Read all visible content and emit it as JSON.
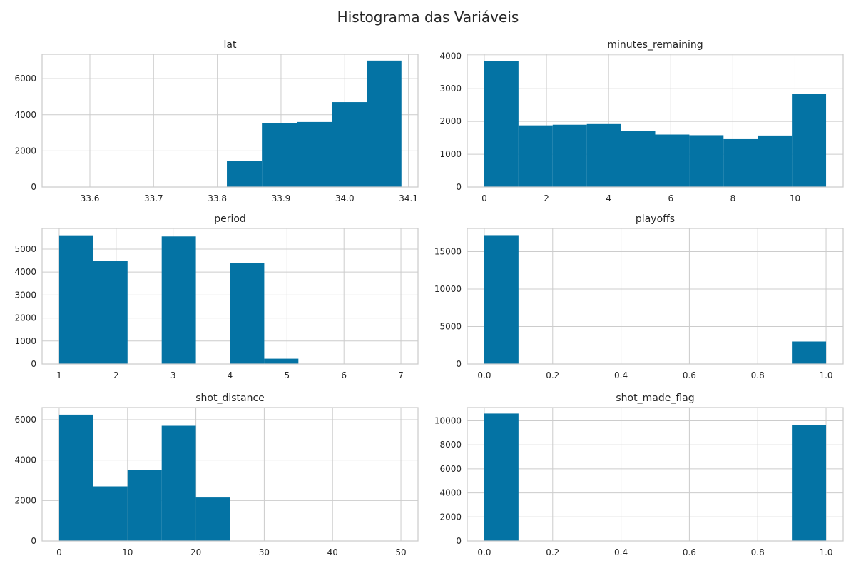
{
  "figure": {
    "title": "Histograma das Variáveis"
  },
  "colors": {
    "bar": "#0473a4",
    "grid": "#cccccc",
    "frame": "#cccccc",
    "text": "#262626"
  },
  "chart_data": [
    {
      "type": "bar",
      "title": "lat",
      "xlim": [
        33.525,
        34.115
      ],
      "ylim": [
        0,
        7350
      ],
      "xticks": [
        33.6,
        33.7,
        33.8,
        33.9,
        34.0,
        34.1
      ],
      "xtick_labels": [
        "33.6",
        "33.7",
        "33.8",
        "33.9",
        "34.0",
        "34.1"
      ],
      "yticks": [
        0,
        2000,
        4000,
        6000
      ],
      "ytick_labels": [
        "0",
        "2000",
        "4000",
        "6000"
      ],
      "bin_edges": [
        33.815,
        33.87,
        33.925,
        33.98,
        34.035,
        34.089
      ],
      "values": [
        1430,
        3550,
        3600,
        4700,
        7000
      ],
      "grid": true
    },
    {
      "type": "bar",
      "title": "minutes_remaining",
      "xlim": [
        -0.55,
        11.55
      ],
      "ylim": [
        0,
        4050
      ],
      "xticks": [
        0,
        2,
        4,
        6,
        8,
        10
      ],
      "xtick_labels": [
        "0",
        "2",
        "4",
        "6",
        "8",
        "10"
      ],
      "yticks": [
        0,
        1000,
        2000,
        3000,
        4000
      ],
      "ytick_labels": [
        "0",
        "1000",
        "2000",
        "3000",
        "4000"
      ],
      "bin_edges": [
        0,
        1.1,
        2.2,
        3.3,
        4.4,
        5.5,
        6.6,
        7.7,
        8.8,
        9.9,
        11
      ],
      "values": [
        3850,
        1880,
        1900,
        1920,
        1720,
        1600,
        1580,
        1460,
        1570,
        2840
      ],
      "grid": true
    },
    {
      "type": "bar",
      "title": "period",
      "xlim": [
        0.7,
        7.3
      ],
      "ylim": [
        0,
        5900
      ],
      "xticks": [
        1,
        2,
        3,
        4,
        5,
        6,
        7
      ],
      "xtick_labels": [
        "1",
        "2",
        "3",
        "4",
        "5",
        "6",
        "7"
      ],
      "yticks": [
        0,
        1000,
        2000,
        3000,
        4000,
        5000
      ],
      "ytick_labels": [
        "0",
        "1000",
        "2000",
        "3000",
        "4000",
        "5000"
      ],
      "bin_edges": [
        1,
        1.6,
        2.2,
        2.8,
        3.4,
        4.0,
        4.6,
        5.2,
        5.8,
        6.4,
        7.0
      ],
      "values": [
        5600,
        4500,
        0,
        5550,
        0,
        4400,
        230,
        0,
        0,
        0
      ],
      "grid": true
    },
    {
      "type": "bar",
      "title": "playoffs",
      "xlim": [
        -0.05,
        1.05
      ],
      "ylim": [
        0,
        18100
      ],
      "xticks": [
        0,
        0.2,
        0.4,
        0.6,
        0.8,
        1.0
      ],
      "xtick_labels": [
        "0.0",
        "0.2",
        "0.4",
        "0.6",
        "0.8",
        "1.0"
      ],
      "yticks": [
        0,
        5000,
        10000,
        15000
      ],
      "ytick_labels": [
        "0",
        "5000",
        "10000",
        "15000"
      ],
      "bin_edges": [
        0,
        0.1,
        0.2,
        0.3,
        0.4,
        0.5,
        0.6,
        0.7,
        0.8,
        0.9,
        1.0
      ],
      "values": [
        17200,
        0,
        0,
        0,
        0,
        0,
        0,
        0,
        0,
        3000
      ],
      "grid": true
    },
    {
      "type": "bar",
      "title": "shot_distance",
      "xlim": [
        -2.5,
        52.5
      ],
      "ylim": [
        0,
        6600
      ],
      "xticks": [
        0,
        10,
        20,
        30,
        40,
        50
      ],
      "xtick_labels": [
        "0",
        "10",
        "20",
        "30",
        "40",
        "50"
      ],
      "yticks": [
        0,
        2000,
        4000,
        6000
      ],
      "ytick_labels": [
        "0",
        "2000",
        "4000",
        "6000"
      ],
      "bin_edges": [
        0,
        5,
        10,
        15,
        20,
        25,
        30,
        35,
        40,
        45,
        50
      ],
      "values": [
        6250,
        2700,
        3500,
        5700,
        2150,
        0,
        0,
        0,
        0,
        0
      ],
      "grid": true
    },
    {
      "type": "bar",
      "title": "shot_made_flag",
      "xlim": [
        -0.05,
        1.05
      ],
      "ylim": [
        0,
        11100
      ],
      "xticks": [
        0,
        0.2,
        0.4,
        0.6,
        0.8,
        1.0
      ],
      "xtick_labels": [
        "0.0",
        "0.2",
        "0.4",
        "0.6",
        "0.8",
        "1.0"
      ],
      "yticks": [
        0,
        2000,
        4000,
        6000,
        8000,
        10000
      ],
      "ytick_labels": [
        "0",
        "2000",
        "4000",
        "6000",
        "8000",
        "10000"
      ],
      "bin_edges": [
        0,
        0.1,
        0.2,
        0.3,
        0.4,
        0.5,
        0.6,
        0.7,
        0.8,
        0.9,
        1.0
      ],
      "values": [
        10600,
        0,
        0,
        0,
        0,
        0,
        0,
        0,
        0,
        9650
      ],
      "grid": true
    }
  ]
}
